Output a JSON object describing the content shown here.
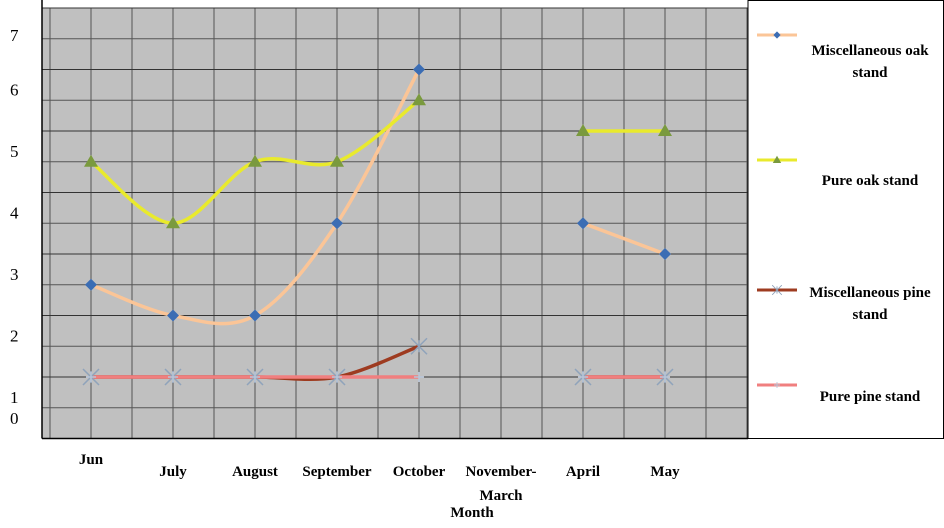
{
  "chart_data": {
    "type": "line",
    "x_label": "Month",
    "categories": [
      "Jun",
      "July",
      "August",
      "September",
      "October",
      "November-March",
      "April",
      "May"
    ],
    "ylim": [
      0,
      7
    ],
    "yticks": [
      0,
      1,
      2,
      3,
      4,
      5,
      6,
      7
    ],
    "grid": true,
    "legend": "right",
    "smooth": true,
    "series": [
      {
        "name": "Miscellaneous oak stand",
        "color": "#fbc597",
        "marker_color": "#3b6db4",
        "marker": "diamond",
        "values": [
          2.5,
          2,
          2,
          3.5,
          6,
          null,
          3.5,
          3
        ]
      },
      {
        "name": "Pure oak stand",
        "color": "#e9ea2c",
        "marker_color": "#7a9a3e",
        "marker": "triangle",
        "values": [
          4.5,
          3.5,
          4.5,
          4.5,
          5.5,
          null,
          5,
          5
        ]
      },
      {
        "name": "Miscellaneous pine stand",
        "color": "#9e3b20",
        "marker_color": "#8fa3bb",
        "marker": "star",
        "values": [
          1,
          1,
          1,
          1,
          1.5,
          null,
          1,
          1
        ]
      },
      {
        "name": "Pure pine stand",
        "color": "#f07f7f",
        "marker_color": "#b7c6d9",
        "marker": "plus",
        "values": [
          1,
          1,
          1,
          1,
          1,
          null,
          1,
          1
        ]
      }
    ]
  }
}
